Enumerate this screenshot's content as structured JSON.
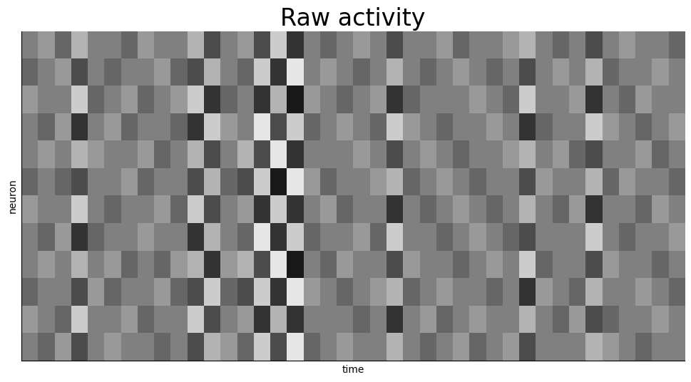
{
  "chart_data": {
    "type": "heatmap",
    "title": "Raw activity",
    "xlabel": "time",
    "ylabel": "neuron",
    "color": "gray",
    "tick_labels": false,
    "vmin": 0,
    "vmax": 1,
    "cells": [
      [
        0.5,
        0.6,
        0.4,
        0.7,
        0.5,
        0.5,
        0.4,
        0.6,
        0.5,
        0.5,
        0.7,
        0.3,
        0.5,
        0.6,
        0.3,
        0.8,
        0.2,
        0.5,
        0.4,
        0.5,
        0.6,
        0.5,
        0.3,
        0.5,
        0.5,
        0.6,
        0.4,
        0.5,
        0.5,
        0.6,
        0.7,
        0.5,
        0.4,
        0.5,
        0.3,
        0.5,
        0.6,
        0.5,
        0.5,
        0.4
      ],
      [
        0.4,
        0.5,
        0.6,
        0.3,
        0.5,
        0.4,
        0.5,
        0.5,
        0.6,
        0.4,
        0.3,
        0.7,
        0.5,
        0.4,
        0.8,
        0.2,
        0.9,
        0.5,
        0.6,
        0.5,
        0.4,
        0.5,
        0.7,
        0.5,
        0.4,
        0.5,
        0.6,
        0.5,
        0.4,
        0.5,
        0.3,
        0.5,
        0.6,
        0.5,
        0.7,
        0.4,
        0.5,
        0.5,
        0.6,
        0.5
      ],
      [
        0.6,
        0.5,
        0.5,
        0.8,
        0.4,
        0.5,
        0.6,
        0.4,
        0.5,
        0.6,
        0.8,
        0.2,
        0.4,
        0.5,
        0.2,
        0.7,
        0.1,
        0.6,
        0.5,
        0.4,
        0.5,
        0.6,
        0.2,
        0.4,
        0.5,
        0.5,
        0.5,
        0.6,
        0.5,
        0.4,
        0.8,
        0.5,
        0.5,
        0.6,
        0.2,
        0.5,
        0.4,
        0.6,
        0.5,
        0.5
      ],
      [
        0.5,
        0.4,
        0.6,
        0.2,
        0.5,
        0.6,
        0.4,
        0.5,
        0.5,
        0.4,
        0.2,
        0.8,
        0.6,
        0.5,
        0.9,
        0.3,
        0.8,
        0.4,
        0.5,
        0.6,
        0.5,
        0.4,
        0.8,
        0.6,
        0.5,
        0.4,
        0.5,
        0.5,
        0.6,
        0.5,
        0.2,
        0.4,
        0.5,
        0.5,
        0.8,
        0.6,
        0.5,
        0.4,
        0.5,
        0.6
      ],
      [
        0.5,
        0.6,
        0.5,
        0.7,
        0.6,
        0.5,
        0.5,
        0.6,
        0.4,
        0.5,
        0.7,
        0.3,
        0.5,
        0.7,
        0.3,
        0.9,
        0.2,
        0.5,
        0.5,
        0.5,
        0.6,
        0.5,
        0.3,
        0.5,
        0.6,
        0.5,
        0.4,
        0.5,
        0.5,
        0.6,
        0.7,
        0.5,
        0.6,
        0.4,
        0.3,
        0.5,
        0.5,
        0.6,
        0.4,
        0.5
      ],
      [
        0.4,
        0.5,
        0.4,
        0.3,
        0.5,
        0.5,
        0.6,
        0.4,
        0.5,
        0.5,
        0.3,
        0.7,
        0.4,
        0.3,
        0.8,
        0.1,
        0.9,
        0.6,
        0.4,
        0.5,
        0.5,
        0.6,
        0.7,
        0.4,
        0.5,
        0.6,
        0.5,
        0.4,
        0.5,
        0.5,
        0.3,
        0.6,
        0.5,
        0.5,
        0.7,
        0.4,
        0.6,
        0.5,
        0.5,
        0.4
      ],
      [
        0.6,
        0.5,
        0.5,
        0.8,
        0.5,
        0.4,
        0.5,
        0.5,
        0.6,
        0.4,
        0.8,
        0.3,
        0.5,
        0.6,
        0.2,
        0.8,
        0.2,
        0.5,
        0.6,
        0.4,
        0.5,
        0.5,
        0.2,
        0.5,
        0.4,
        0.5,
        0.6,
        0.5,
        0.4,
        0.5,
        0.7,
        0.5,
        0.4,
        0.6,
        0.2,
        0.5,
        0.5,
        0.4,
        0.6,
        0.5
      ],
      [
        0.5,
        0.4,
        0.6,
        0.2,
        0.4,
        0.5,
        0.5,
        0.6,
        0.5,
        0.5,
        0.2,
        0.7,
        0.5,
        0.4,
        0.9,
        0.2,
        0.8,
        0.4,
        0.5,
        0.5,
        0.6,
        0.4,
        0.8,
        0.5,
        0.5,
        0.4,
        0.5,
        0.6,
        0.5,
        0.4,
        0.3,
        0.5,
        0.5,
        0.5,
        0.8,
        0.5,
        0.4,
        0.5,
        0.5,
        0.6
      ],
      [
        0.5,
        0.6,
        0.5,
        0.7,
        0.5,
        0.6,
        0.4,
        0.5,
        0.4,
        0.6,
        0.7,
        0.2,
        0.6,
        0.7,
        0.3,
        0.9,
        0.1,
        0.5,
        0.4,
        0.6,
        0.5,
        0.5,
        0.3,
        0.6,
        0.5,
        0.5,
        0.4,
        0.5,
        0.6,
        0.5,
        0.8,
        0.4,
        0.5,
        0.5,
        0.3,
        0.6,
        0.5,
        0.5,
        0.4,
        0.5
      ],
      [
        0.4,
        0.5,
        0.5,
        0.3,
        0.6,
        0.4,
        0.5,
        0.5,
        0.6,
        0.4,
        0.3,
        0.8,
        0.4,
        0.3,
        0.8,
        0.2,
        0.9,
        0.6,
        0.5,
        0.4,
        0.5,
        0.6,
        0.7,
        0.4,
        0.5,
        0.6,
        0.5,
        0.5,
        0.4,
        0.5,
        0.2,
        0.6,
        0.5,
        0.4,
        0.7,
        0.5,
        0.5,
        0.6,
        0.5,
        0.4
      ],
      [
        0.6,
        0.5,
        0.4,
        0.8,
        0.5,
        0.5,
        0.6,
        0.4,
        0.5,
        0.5,
        0.8,
        0.3,
        0.5,
        0.6,
        0.2,
        0.7,
        0.2,
        0.5,
        0.5,
        0.5,
        0.4,
        0.5,
        0.2,
        0.5,
        0.6,
        0.4,
        0.5,
        0.6,
        0.5,
        0.5,
        0.7,
        0.5,
        0.4,
        0.6,
        0.3,
        0.4,
        0.5,
        0.5,
        0.6,
        0.5
      ],
      [
        0.5,
        0.4,
        0.6,
        0.3,
        0.5,
        0.6,
        0.5,
        0.5,
        0.4,
        0.5,
        0.3,
        0.7,
        0.6,
        0.4,
        0.8,
        0.3,
        0.9,
        0.4,
        0.5,
        0.6,
        0.5,
        0.5,
        0.7,
        0.5,
        0.4,
        0.5,
        0.6,
        0.4,
        0.5,
        0.6,
        0.3,
        0.5,
        0.5,
        0.5,
        0.7,
        0.6,
        0.5,
        0.4,
        0.5,
        0.5
      ]
    ]
  }
}
